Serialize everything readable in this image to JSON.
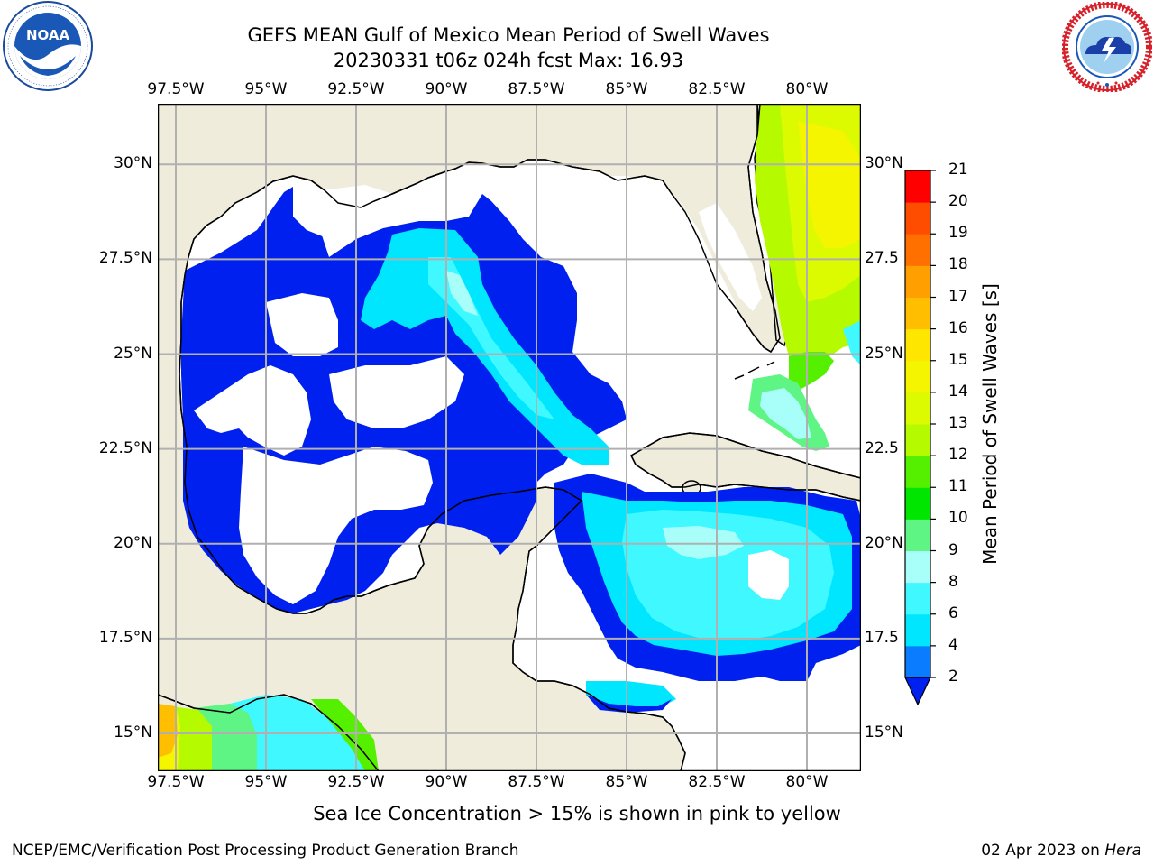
{
  "header": {
    "title_line1": "GEFS MEAN Gulf of Mexico Mean Period of Swell Waves",
    "title_line2": "20230331 t06z 024h fcst   Max: 16.93"
  },
  "logos": {
    "left": {
      "icon": "noaa-logo",
      "text": "NOAA",
      "ring_text": "NATIONAL OCEANIC AND ATMOSPHERIC ADMINISTRATION · U.S. DEPARTMENT OF COMMERCE"
    },
    "right": {
      "icon": "nws-logo",
      "ring_text": "NATIONAL WEATHER SERVICE"
    }
  },
  "map": {
    "lon_labels": [
      "97.5°W",
      "95°W",
      "92.5°W",
      "90°W",
      "87.5°W",
      "85°W",
      "82.5°W",
      "80°W"
    ],
    "lat_labels_left": [
      "30°N",
      "27.5°N",
      "25°N",
      "22.5°N",
      "20°N",
      "17.5°N",
      "15°N"
    ],
    "lat_labels_right": [
      "30°N",
      "27.5",
      "25°N",
      "22.5",
      "20°N",
      "17.5",
      "15°N"
    ],
    "lon_range": [
      -98,
      -78.5
    ],
    "lat_range": [
      14,
      31.6
    ],
    "land_color": "#efecdc",
    "grid_color": "#b0b0b0"
  },
  "colorbar": {
    "title": "Mean Period of Swell Waves [s]",
    "ticks": [
      "2",
      "4",
      "6",
      "8",
      "9",
      "10",
      "11",
      "12",
      "13",
      "14",
      "15",
      "16",
      "17",
      "18",
      "19",
      "20",
      "21"
    ],
    "colors": [
      "#0a7cff",
      "#00e6ff",
      "#40f8ff",
      "#a8fffa",
      "#5ef585",
      "#00e600",
      "#55f000",
      "#b6fa00",
      "#dcfa00",
      "#f5f500",
      "#ffe600",
      "#ffbf00",
      "#ff9f00",
      "#ff7000",
      "#ff4d00",
      "#ff0000"
    ],
    "extend_color": "#0020f0"
  },
  "footer": {
    "note": "Sea Ice Concentration > 15% is shown in pink to yellow",
    "left": "NCEP/EMC/Verification Post Processing Product Generation Branch",
    "right_date": "02 Apr 2023 on ",
    "right_host": "Hera"
  }
}
